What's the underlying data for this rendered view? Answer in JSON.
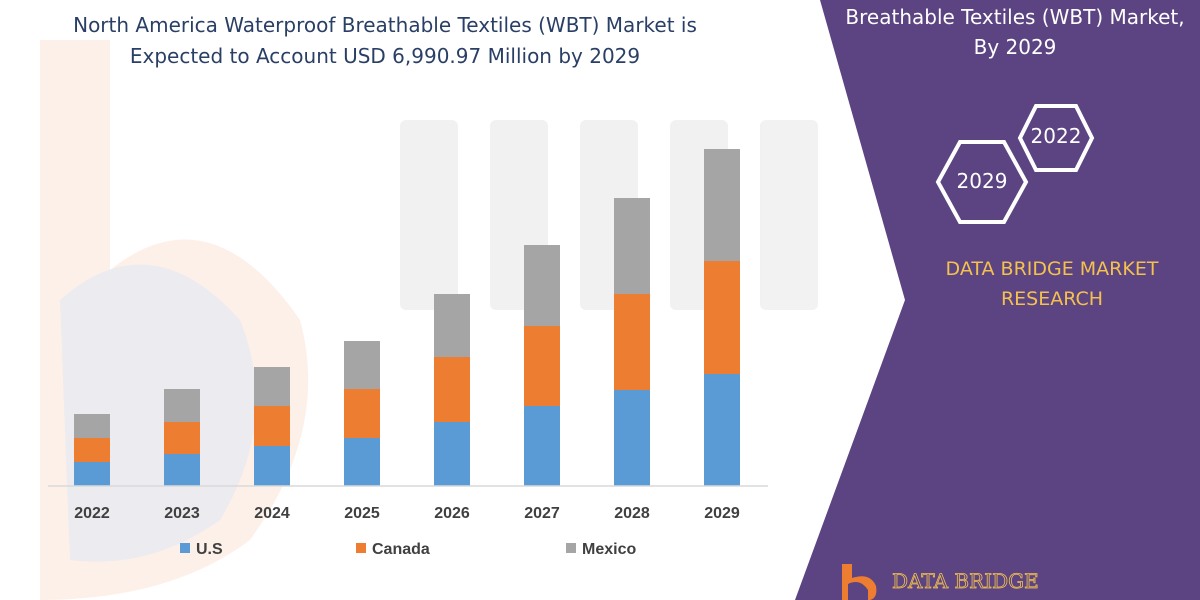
{
  "header": {
    "title_line1": "North America Waterproof Breathable Textiles (WBT) Market is",
    "title_line2": "Expected to Account USD 6,990.97 Million by 2029"
  },
  "panel": {
    "title_line1": "Breathable Textiles (WBT) Market,",
    "title_line2": "By 2029",
    "hex_2022": "2022",
    "hex_2029": "2029",
    "brand_line1": "DATA BRIDGE MARKET",
    "brand_line2": "RESEARCH",
    "logo_text": "DATA BRIDGE"
  },
  "colors": {
    "us": "#5b9bd5",
    "canada": "#ed7d31",
    "mexico": "#a5a5a5",
    "panel": "#5c4482",
    "brand_text": "#f4c14e"
  },
  "chart_data": {
    "type": "bar",
    "stacked": true,
    "categories": [
      "2022",
      "2023",
      "2024",
      "2025",
      "2026",
      "2027",
      "2028",
      "2029"
    ],
    "series": [
      {
        "name": "U.S",
        "values": [
          24,
          32,
          40,
          48,
          64,
          80,
          96,
          112
        ]
      },
      {
        "name": "Canada",
        "values": [
          24,
          32,
          40,
          49,
          65,
          80,
          96,
          113
        ]
      },
      {
        "name": "Mexico",
        "values": [
          24,
          33,
          39,
          48,
          63,
          81,
          96,
          112
        ]
      }
    ],
    "title": "North America Waterproof Breathable Textiles (WBT) Market is Expected to Account USD 6,990.97 Million by 2029",
    "legend_position": "bottom",
    "grid": false,
    "y_axis_visible": false
  }
}
